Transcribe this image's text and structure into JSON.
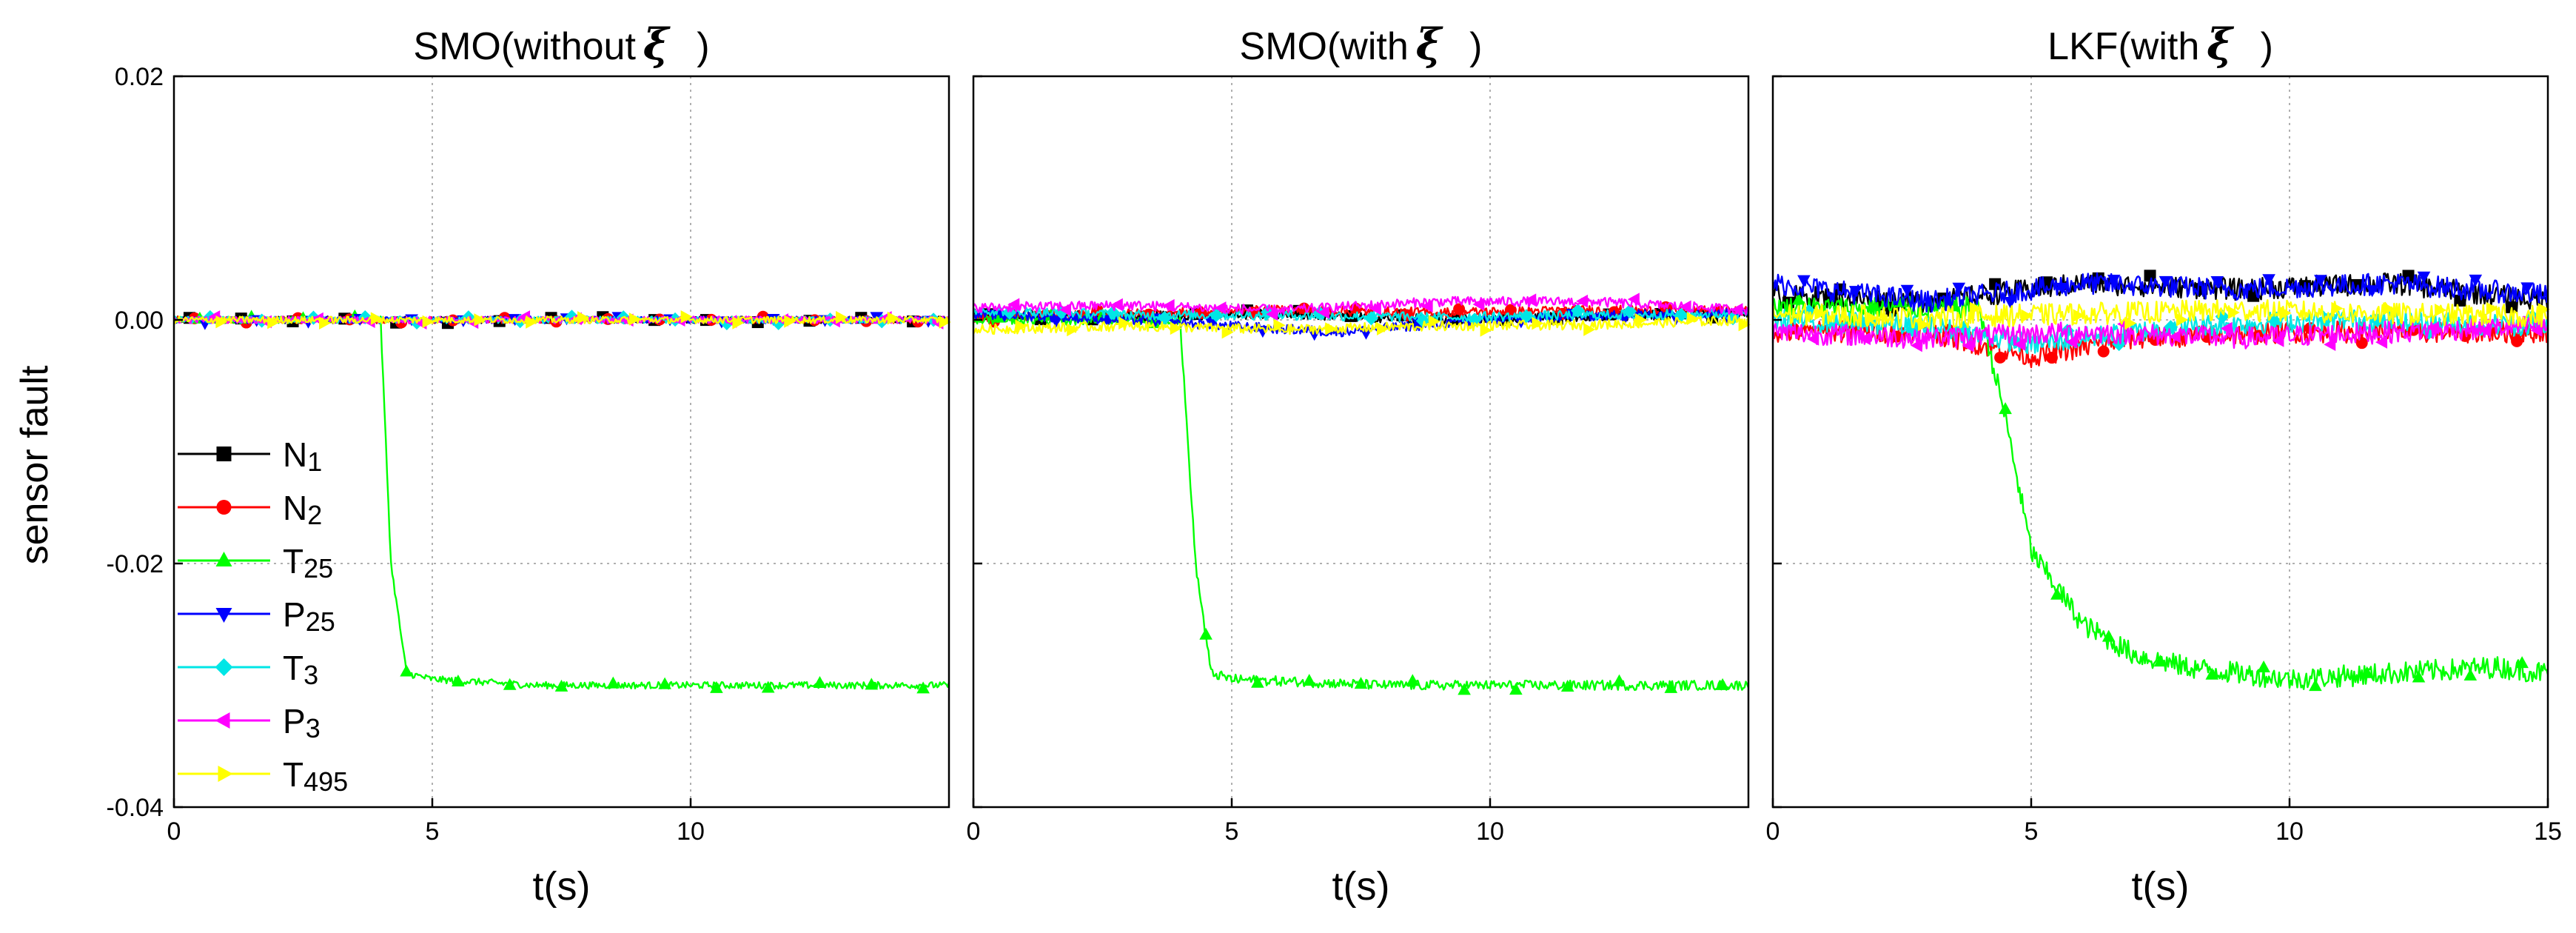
{
  "figure": {
    "ylabel": "sensor fault",
    "colors": {
      "N1": "#000000",
      "N2": "#ff0000",
      "T25": "#00ff00",
      "P25": "#0000ff",
      "T3": "#00e6e6",
      "P3": "#ff00ff",
      "T495": "#ffff00"
    }
  },
  "chart_data": [
    {
      "type": "line",
      "title": "SMO(without",
      "title_symbol": "ξ",
      "title_suffix": ")",
      "xlabel": "t(s)",
      "ylabel": "sensor fault",
      "xlim": [
        0,
        15
      ],
      "ylim": [
        -0.04,
        0.02
      ],
      "xticks": [
        0,
        5,
        10
      ],
      "xtick_labels": [
        "0",
        "5",
        "10"
      ],
      "yticks": [
        0.02,
        0.0,
        -0.02,
        -0.04
      ],
      "ytick_labels": [
        "0.02",
        "0.00",
        "-0.02",
        "-0.04"
      ],
      "grid": true,
      "legend": {
        "position": "lower-left",
        "entries": [
          {
            "base": "N",
            "sub": "1"
          },
          {
            "base": "N",
            "sub": "2"
          },
          {
            "base": "T",
            "sub": "25"
          },
          {
            "base": "P",
            "sub": "25"
          },
          {
            "base": "T",
            "sub": "3"
          },
          {
            "base": "P",
            "sub": "3"
          },
          {
            "base": "T",
            "sub": "495"
          }
        ]
      },
      "series": [
        {
          "name": "N1",
          "marker": "square",
          "values": [
            0.0,
            0.0,
            0.0,
            0.0
          ],
          "x": [
            0,
            5,
            10,
            15
          ]
        },
        {
          "name": "N2",
          "marker": "circle",
          "x": [
            0,
            5,
            10,
            15
          ],
          "values": [
            0.0,
            0.0,
            0.0,
            0.0
          ]
        },
        {
          "name": "T25",
          "marker": "triangle-up",
          "x": [
            0,
            4.0,
            4.2,
            4.5,
            5.0,
            7.0,
            10.0,
            15.0
          ],
          "values": [
            0.0,
            0.0,
            -0.02,
            -0.029,
            -0.0295,
            -0.03,
            -0.03,
            -0.03
          ]
        },
        {
          "name": "P25",
          "marker": "triangle-down",
          "x": [
            0,
            5,
            10,
            15
          ],
          "values": [
            0.0,
            0.0,
            0.0,
            0.0
          ]
        },
        {
          "name": "T3",
          "marker": "diamond",
          "x": [
            0,
            5,
            10,
            15
          ],
          "values": [
            0.0,
            0.0,
            0.0,
            0.0
          ]
        },
        {
          "name": "P3",
          "marker": "triangle-left",
          "x": [
            0,
            5,
            10,
            15
          ],
          "values": [
            0.0,
            0.0,
            0.0,
            0.0
          ]
        },
        {
          "name": "T495",
          "marker": "triangle-right",
          "x": [
            0,
            5,
            10,
            15
          ],
          "values": [
            0.0,
            0.0,
            0.0,
            0.0
          ]
        }
      ]
    },
    {
      "type": "line",
      "title": "SMO(with",
      "title_symbol": "ξ",
      "title_suffix": ")",
      "xlabel": "t(s)",
      "xlim": [
        0,
        15
      ],
      "ylim": [
        -0.04,
        0.02
      ],
      "xticks": [
        0,
        5,
        10
      ],
      "xtick_labels": [
        "0",
        "5",
        "10"
      ],
      "grid": true,
      "series": [
        {
          "name": "N1",
          "marker": "square",
          "x": [
            0,
            3,
            6,
            9,
            12,
            15
          ],
          "values": [
            0.0005,
            0.0003,
            0.0005,
            0.0,
            0.0003,
            0.0005
          ]
        },
        {
          "name": "N2",
          "marker": "circle",
          "x": [
            0,
            3,
            6,
            9,
            12,
            15
          ],
          "values": [
            0.0002,
            0.0005,
            0.0008,
            0.0006,
            0.0008,
            0.0007
          ]
        },
        {
          "name": "T25",
          "marker": "triangle-up",
          "x": [
            0,
            4.0,
            4.3,
            4.6,
            5.0,
            8.0,
            10.0,
            15.0
          ],
          "values": [
            0.0,
            0.0,
            -0.02,
            -0.029,
            -0.0295,
            -0.03,
            -0.03,
            -0.03
          ]
        },
        {
          "name": "P25",
          "marker": "triangle-down",
          "x": [
            0,
            3,
            5,
            7,
            10,
            13,
            15
          ],
          "values": [
            0.0005,
            0.0,
            -0.0005,
            -0.001,
            0.0,
            0.0005,
            0.0005
          ]
        },
        {
          "name": "T3",
          "marker": "diamond",
          "x": [
            0,
            3,
            6,
            9,
            12,
            15
          ],
          "values": [
            0.0008,
            0.0004,
            0.0004,
            0.0002,
            0.0004,
            0.0005
          ]
        },
        {
          "name": "P3",
          "marker": "triangle-left",
          "x": [
            0,
            3,
            6,
            9,
            12,
            15
          ],
          "values": [
            0.001,
            0.0012,
            0.0008,
            0.0015,
            0.0015,
            0.0008
          ]
        },
        {
          "name": "T495",
          "marker": "triangle-right",
          "x": [
            0,
            3,
            6,
            9,
            12,
            15
          ],
          "values": [
            -0.0008,
            -0.0005,
            -0.0008,
            -0.0005,
            -0.0004,
            0.0
          ]
        }
      ]
    },
    {
      "type": "line",
      "title": "LKF(with",
      "title_symbol": "ξ",
      "title_suffix": ")",
      "xlabel": "t(s)",
      "xlim": [
        0,
        15
      ],
      "ylim": [
        -0.04,
        0.02
      ],
      "xticks": [
        0,
        5,
        10,
        15
      ],
      "xtick_labels": [
        "0",
        "5",
        "10",
        "15"
      ],
      "grid": true,
      "series": [
        {
          "name": "N1",
          "marker": "square",
          "x": [
            0,
            3,
            6,
            9,
            12,
            15
          ],
          "values": [
            0.002,
            0.0015,
            0.003,
            0.0025,
            0.003,
            0.0015
          ]
        },
        {
          "name": "N2",
          "marker": "circle",
          "x": [
            0,
            3,
            5,
            7,
            10,
            13,
            15
          ],
          "values": [
            -0.001,
            -0.001,
            -0.003,
            -0.0015,
            -0.001,
            -0.001,
            -0.001
          ]
        },
        {
          "name": "T25",
          "marker": "triangle-up",
          "x": [
            0,
            4.0,
            4.5,
            5.0,
            6.0,
            7.0,
            8.0,
            10.0,
            12.0,
            14.0,
            15.0
          ],
          "values": [
            0.001,
            0.001,
            -0.008,
            -0.019,
            -0.025,
            -0.0275,
            -0.0285,
            -0.0295,
            -0.029,
            -0.0285,
            -0.029
          ]
        },
        {
          "name": "P25",
          "marker": "triangle-down",
          "x": [
            0,
            3,
            6,
            9,
            12,
            15
          ],
          "values": [
            0.003,
            0.0015,
            0.003,
            0.0025,
            0.003,
            0.002
          ]
        },
        {
          "name": "T3",
          "marker": "diamond",
          "x": [
            0,
            3,
            5,
            8,
            11,
            15
          ],
          "values": [
            0.0,
            -0.0005,
            -0.002,
            -0.0005,
            0.0,
            -0.0005
          ]
        },
        {
          "name": "P3",
          "marker": "triangle-left",
          "x": [
            0,
            3,
            6,
            9,
            12,
            15
          ],
          "values": [
            -0.001,
            -0.0015,
            -0.001,
            -0.0015,
            -0.001,
            -0.0005
          ]
        },
        {
          "name": "T495",
          "marker": "triangle-right",
          "x": [
            0,
            3,
            6,
            9,
            12,
            15
          ],
          "values": [
            0.0005,
            0.0002,
            0.0005,
            0.0008,
            0.0005,
            0.0003
          ]
        }
      ]
    }
  ]
}
